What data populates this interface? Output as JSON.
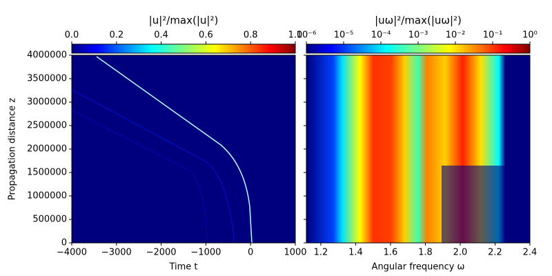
{
  "chart_data": [
    {
      "type": "heatmap",
      "title": "|u|²/max(|u|²)",
      "x_label": "Time t",
      "y_label": "Propagation distance z",
      "xlim": [
        -4000,
        1000
      ],
      "xticks": [
        {
          "value": -4000,
          "label": "−4000"
        },
        {
          "value": -3000,
          "label": "−3000"
        },
        {
          "value": -2000,
          "label": "−2000"
        },
        {
          "value": -1000,
          "label": "−1000"
        },
        0,
        1000
      ],
      "ylim": [
        0,
        4000000
      ],
      "yticks": [
        0,
        500000,
        1000000,
        1500000,
        2000000,
        2500000,
        3000000,
        3500000,
        4000000
      ],
      "colormap": "jet",
      "colorbar": {
        "scale": "linear",
        "lim": [
          0,
          1
        ],
        "ticks": [
          {
            "value": 0,
            "label": "0.0"
          },
          0.2,
          0.4,
          0.6,
          0.8,
          {
            "value": 1,
            "label": "1.0"
          }
        ]
      }
    },
    {
      "type": "heatmap",
      "title": "|uω|²/max(|uω|²)",
      "x_label": "Angular frequency ω",
      "xlim": [
        1.117,
        2.4
      ],
      "xticks": [
        1.2,
        1.4,
        1.6,
        1.8,
        2.0,
        2.2,
        2.4
      ],
      "xtick_labels": [
        "1.2",
        "1.4",
        "1.6",
        "1.8",
        "2.0",
        "2.2",
        "2.4"
      ],
      "sharey": true,
      "colormap": "jet",
      "colorbar": {
        "scale": "log",
        "lim": [
          1e-06,
          1
        ],
        "ticks": [
          {
            "value": 1e-06,
            "label": "10⁻⁶"
          },
          {
            "value": 1e-05,
            "label": "10⁻⁵"
          },
          {
            "value": 0.0001,
            "label": "10⁻⁴"
          },
          {
            "value": 0.001,
            "label": "10⁻³"
          },
          {
            "value": 0.01,
            "label": "10⁻²"
          },
          {
            "value": 0.1,
            "label": "10⁻¹"
          },
          {
            "value": 1,
            "label": "10⁰"
          }
        ]
      }
    }
  ]
}
